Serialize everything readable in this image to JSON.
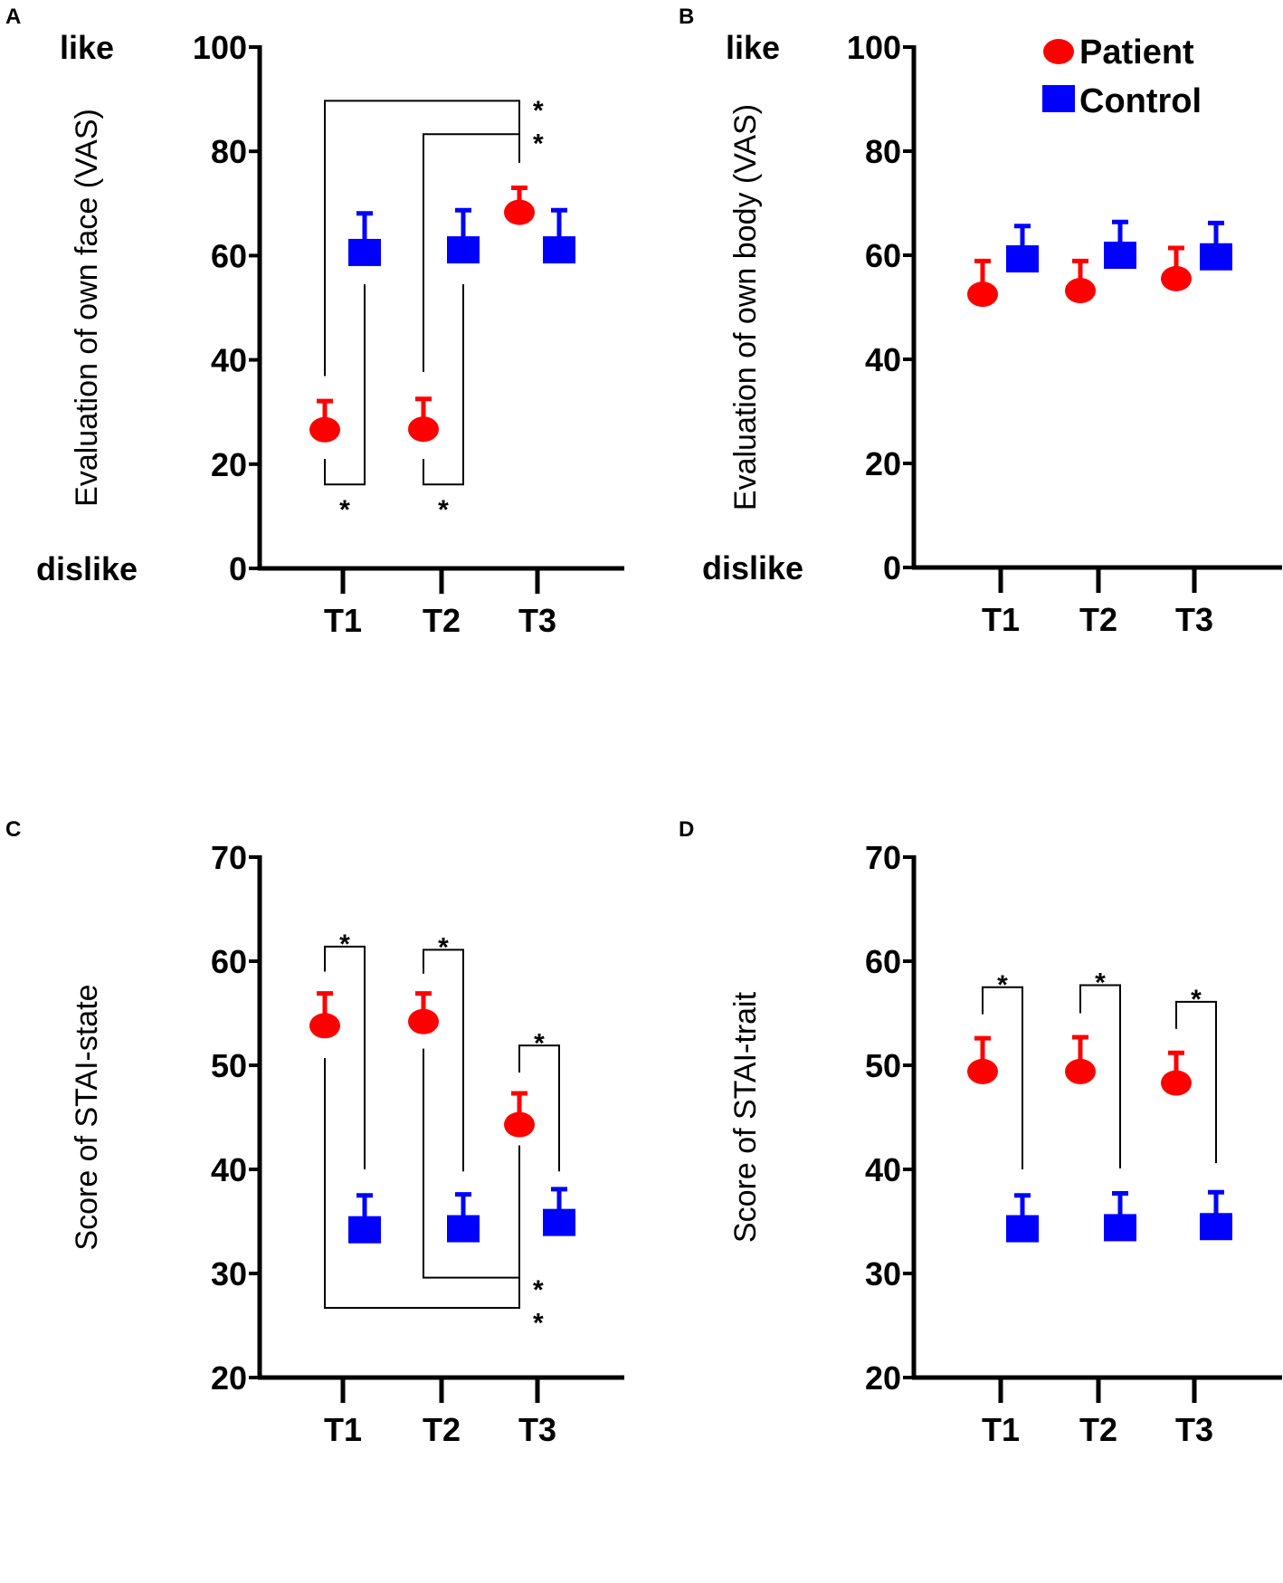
{
  "colors": {
    "patient": "#ff0000",
    "control": "#0000ff",
    "axis": "#000000"
  },
  "legend": {
    "patient": "Patient",
    "control": "Control"
  },
  "chart_data": [
    {
      "panel": "A",
      "type": "scatter",
      "ylabel": "Evaluation of own face (VAS)",
      "top_anchor": "like",
      "bottom_anchor": "dislike",
      "ylim": [
        0,
        100
      ],
      "yticks": [
        "0",
        "20",
        "40",
        "60",
        "80",
        "100"
      ],
      "categories": [
        "T1",
        "T2",
        "T3"
      ],
      "series": [
        {
          "name": "Patient",
          "key": "patient",
          "marker": "circle",
          "values": [
            26.6,
            26.7,
            68.3
          ],
          "err_upper": [
            32.1,
            32.5,
            73.0
          ]
        },
        {
          "name": "Control",
          "key": "control",
          "marker": "square",
          "values": [
            60.6,
            61.1,
            61.1
          ],
          "err_upper": [
            68.1,
            68.7,
            68.7
          ]
        }
      ],
      "brackets": [
        {
          "points": [
            [
              0,
              "patient",
              36.9
            ],
            [
              0,
              "patient",
              89.7
            ],
            [
              2,
              "patient",
              89.7
            ],
            [
              2,
              "patient",
              77.8
            ]
          ],
          "label": "*",
          "label_at": [
            2,
            "patient",
            88.5
          ]
        },
        {
          "points": [
            [
              1,
              "patient",
              37.7
            ],
            [
              1,
              "patient",
              83.3
            ],
            [
              2,
              "patient",
              83.3
            ]
          ],
          "label": "*",
          "label_at": [
            2,
            "patient",
            82.2
          ]
        },
        {
          "points": [
            [
              0,
              "patient",
              21.0
            ],
            [
              0,
              "patient",
              16.1
            ],
            [
              0,
              "control",
              16.1
            ],
            [
              0,
              "control",
              54.5
            ]
          ],
          "label": "*",
          "label_at": [
            0,
            "mid",
            12.0
          ]
        },
        {
          "points": [
            [
              1,
              "patient",
              21.0
            ],
            [
              1,
              "patient",
              16.1
            ],
            [
              1,
              "control",
              16.1
            ],
            [
              1,
              "control",
              54.5
            ]
          ],
          "label": "*",
          "label_at": [
            1,
            "mid",
            12.0
          ]
        }
      ]
    },
    {
      "panel": "B",
      "type": "scatter",
      "ylabel": "Evaluation of own body (VAS)",
      "top_anchor": "like",
      "bottom_anchor": "dislike",
      "ylim": [
        0,
        100
      ],
      "yticks": [
        "0",
        "20",
        "40",
        "60",
        "80",
        "100"
      ],
      "categories": [
        "T1",
        "T2",
        "T3"
      ],
      "legend_position": "top-right",
      "series": [
        {
          "name": "Patient",
          "key": "patient",
          "marker": "circle",
          "values": [
            52.5,
            53.2,
            55.5
          ],
          "err_upper": [
            58.9,
            58.9,
            61.4
          ]
        },
        {
          "name": "Control",
          "key": "control",
          "marker": "square",
          "values": [
            59.3,
            60.0,
            59.7
          ],
          "err_upper": [
            65.6,
            66.4,
            66.2
          ]
        }
      ],
      "brackets": []
    },
    {
      "panel": "C",
      "type": "scatter",
      "ylabel": "Score of STAI-state",
      "ylim": [
        20,
        70
      ],
      "yticks": [
        "20",
        "30",
        "40",
        "50",
        "60",
        "70"
      ],
      "categories": [
        "T1",
        "T2",
        "T3"
      ],
      "series": [
        {
          "name": "Patient",
          "key": "patient",
          "marker": "circle",
          "values": [
            53.8,
            54.2,
            44.3
          ],
          "err_upper": [
            56.9,
            56.9,
            47.3
          ]
        },
        {
          "name": "Control",
          "key": "control",
          "marker": "square",
          "values": [
            34.2,
            34.3,
            34.9
          ],
          "err_upper": [
            37.5,
            37.6,
            38.1
          ]
        }
      ],
      "brackets": [
        {
          "points": [
            [
              0,
              "patient",
              59.0
            ],
            [
              0,
              "patient",
              61.4
            ],
            [
              0,
              "control",
              61.4
            ],
            [
              0,
              "control",
              40.0
            ]
          ],
          "label": "*",
          "label_at": [
            0,
            "mid",
            62.0
          ]
        },
        {
          "points": [
            [
              1,
              "patient",
              58.8
            ],
            [
              1,
              "patient",
              61.1
            ],
            [
              1,
              "control",
              61.1
            ],
            [
              1,
              "control",
              39.8
            ]
          ],
          "label": "*",
          "label_at": [
            1,
            "mid",
            61.7
          ]
        },
        {
          "points": [
            [
              2,
              "patient",
              49.3
            ],
            [
              2,
              "patient",
              51.9
            ],
            [
              2,
              "control",
              51.9
            ],
            [
              2,
              "control",
              39.8
            ]
          ],
          "label": "*",
          "label_at": [
            2,
            "mid",
            52.5
          ]
        },
        {
          "points": [
            [
              1,
              "patient",
              51.6
            ],
            [
              1,
              "patient",
              29.6
            ],
            [
              2,
              "patient",
              29.6
            ]
          ],
          "label": "*",
          "label_at": [
            2,
            "patient",
            28.8
          ]
        },
        {
          "points": [
            [
              0,
              "patient",
              50.7
            ],
            [
              0,
              "patient",
              26.7
            ],
            [
              2,
              "patient",
              26.7
            ],
            [
              2,
              "patient",
              42.3
            ]
          ],
          "label": "*",
          "label_at": [
            2,
            "patient",
            25.6
          ]
        }
      ]
    },
    {
      "panel": "D",
      "type": "scatter",
      "ylabel": "Score of STAI-trait",
      "ylim": [
        20,
        70
      ],
      "yticks": [
        "20",
        "30",
        "40",
        "50",
        "60",
        "70"
      ],
      "categories": [
        "T1",
        "T2",
        "T3"
      ],
      "series": [
        {
          "name": "Patient",
          "key": "patient",
          "marker": "circle",
          "values": [
            49.4,
            49.4,
            48.3
          ],
          "err_upper": [
            52.6,
            52.7,
            51.2
          ]
        },
        {
          "name": "Control",
          "key": "control",
          "marker": "square",
          "values": [
            34.3,
            34.4,
            34.5
          ],
          "err_upper": [
            37.5,
            37.7,
            37.8
          ]
        }
      ],
      "brackets": [
        {
          "points": [
            [
              0,
              "patient",
              54.9
            ],
            [
              0,
              "patient",
              57.5
            ],
            [
              0,
              "control",
              57.5
            ],
            [
              0,
              "control",
              40.0
            ]
          ],
          "label": "*",
          "label_at": [
            0,
            "mid",
            58.1
          ]
        },
        {
          "points": [
            [
              1,
              "patient",
              55.0
            ],
            [
              1,
              "patient",
              57.7
            ],
            [
              1,
              "control",
              57.7
            ],
            [
              1,
              "control",
              40.1
            ]
          ],
          "label": "*",
          "label_at": [
            1,
            "mid",
            58.3
          ]
        },
        {
          "points": [
            [
              2,
              "patient",
              53.5
            ],
            [
              2,
              "patient",
              56.1
            ],
            [
              2,
              "control",
              56.1
            ],
            [
              2,
              "control",
              40.6
            ]
          ],
          "label": "*",
          "label_at": [
            2,
            "mid",
            56.7
          ]
        }
      ]
    }
  ]
}
